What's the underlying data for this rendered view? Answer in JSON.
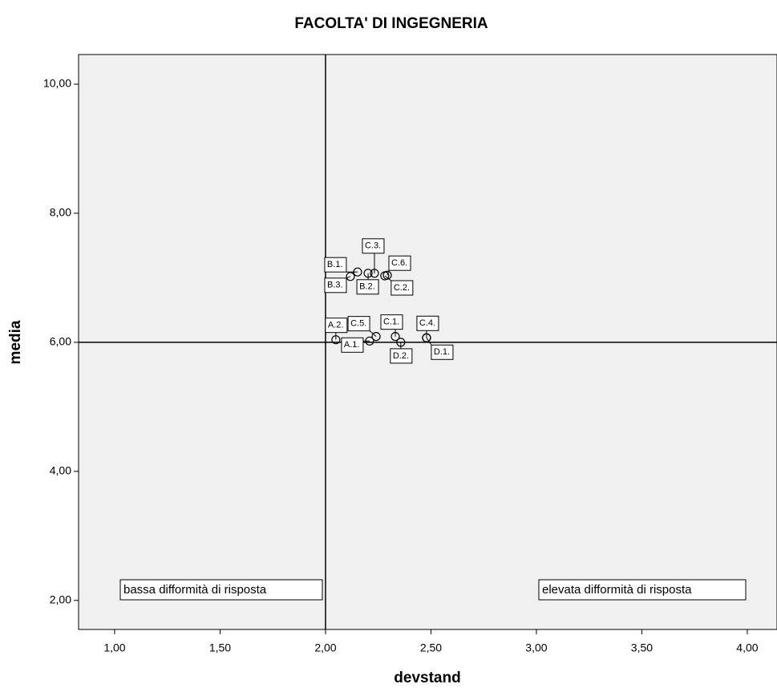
{
  "chart_data": {
    "type": "scatter",
    "title": "FACOLTA' DI INGEGNERIA",
    "x_label": "devstand",
    "y_label": "media",
    "labels": [
      "B.1.",
      "B.2.",
      "B.3.",
      "C.2.",
      "C.3.",
      "C.6.",
      "A.1.",
      "A.2.",
      "C.1.",
      "C.4.",
      "C.5.",
      "D.1.",
      "D.2."
    ],
    "x": [
      2.152,
      2.202,
      2.118,
      2.281,
      2.232,
      2.293,
      2.209,
      2.049,
      2.331,
      2.479,
      2.24,
      2.479,
      2.357
    ],
    "y": [
      7.09,
      7.07,
      7.02,
      7.03,
      7.07,
      7.04,
      6.02,
      6.04,
      6.09,
      6.07,
      6.09,
      6.07,
      6.0
    ],
    "xlim": [
      0.829,
      4.141
    ],
    "ylim": [
      1.55,
      10.46
    ],
    "xticks": [
      {
        "value": 1,
        "label": "1,00"
      },
      {
        "value": 1.5,
        "label": "1,50"
      },
      {
        "value": 2,
        "label": "2,00"
      },
      {
        "value": 2.5,
        "label": "2,50"
      },
      {
        "value": 3,
        "label": "3,00"
      },
      {
        "value": 3.5,
        "label": "3,50"
      },
      {
        "value": 4,
        "label": "4,00"
      }
    ],
    "yticks": [
      {
        "value": 2,
        "label": "2,00"
      },
      {
        "value": 4,
        "label": "4,00"
      },
      {
        "value": 6,
        "label": "6,00"
      },
      {
        "value": 8,
        "label": "8,00"
      },
      {
        "value": 10,
        "label": "10,00"
      }
    ],
    "ref_x": 2,
    "ref_y": 6,
    "annotations": [
      "bassa difformità di risposta",
      "elevata difformità di risposta"
    ],
    "plot_background": "#f0f0f0"
  }
}
